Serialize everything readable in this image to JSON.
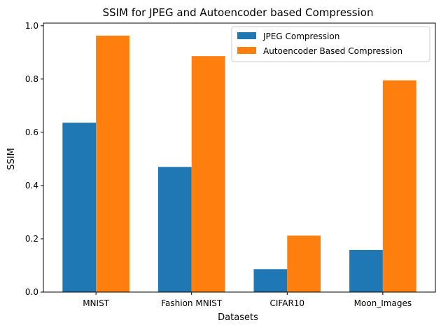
{
  "chart_data": {
    "type": "bar",
    "title": "SSIM for JPEG and Autoencoder based Compression",
    "xlabel": "Datasets",
    "ylabel": "SSIM",
    "categories": [
      "MNIST",
      "Fashion MNIST",
      "CIFAR10",
      "Moon_Images"
    ],
    "series": [
      {
        "name": "JPEG Compression",
        "color": "#1f77b4",
        "values": [
          0.636,
          0.47,
          0.086,
          0.158
        ]
      },
      {
        "name": "Autoencoder Based Compression",
        "color": "#ff7f0e",
        "values": [
          0.963,
          0.886,
          0.212,
          0.795
        ]
      }
    ],
    "ylim": [
      0,
      1.01
    ],
    "yticks": [
      "0.0",
      "0.2",
      "0.4",
      "0.6",
      "0.8",
      "1.0"
    ],
    "legend_position": "top-right",
    "grid": false
  }
}
